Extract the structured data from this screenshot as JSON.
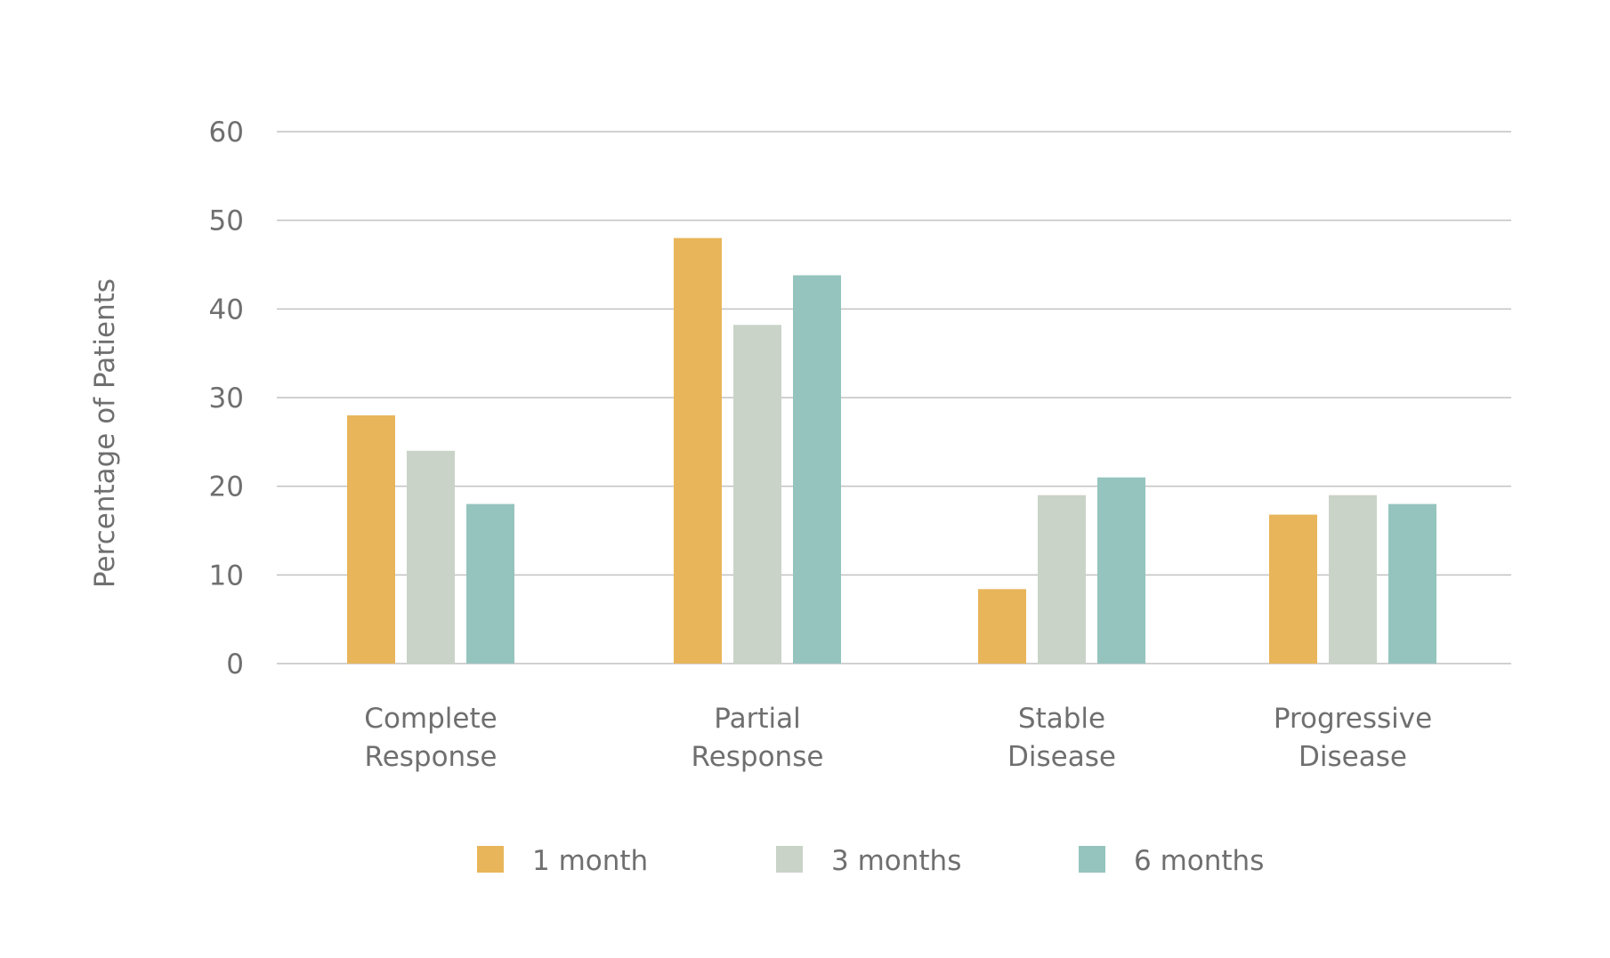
{
  "chart_data": {
    "type": "bar",
    "title": "",
    "xlabel": "",
    "ylabel": "Percentage of Patients",
    "ylim": [
      0,
      60
    ],
    "yticks": [
      0,
      10,
      20,
      30,
      40,
      50,
      60
    ],
    "grid": true,
    "legend_position": "bottom",
    "categories": [
      [
        "Complete",
        "Response"
      ],
      [
        "Partial",
        "Response"
      ],
      [
        "Stable",
        "Disease"
      ],
      [
        "Progressive",
        "Disease"
      ]
    ],
    "series": [
      {
        "name": "1 month",
        "color": "#e8b55a",
        "values": [
          28,
          48,
          8.4,
          16.8
        ]
      },
      {
        "name": "3 months",
        "color": "#cad3c8",
        "values": [
          24,
          38.2,
          19,
          19
        ]
      },
      {
        "name": "6 months",
        "color": "#95c4be",
        "values": [
          18,
          43.8,
          21,
          18
        ]
      }
    ]
  }
}
